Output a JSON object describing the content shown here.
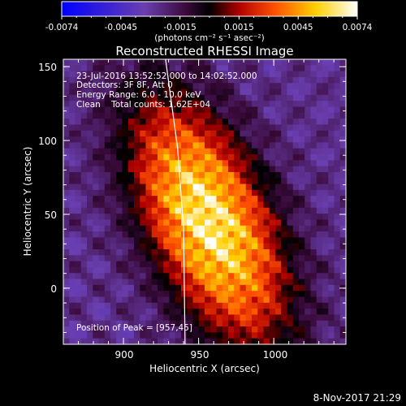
{
  "chart_data": {
    "type": "heatmap",
    "title": "Reconstructed RHESSI Image",
    "xlabel": "Heliocentric X (arcsec)",
    "ylabel": "Heliocentric Y (arcsec)",
    "xlim": [
      860,
      1048
    ],
    "ylim": [
      -38,
      155
    ],
    "x_ticks": [
      900,
      950,
      1000
    ],
    "y_ticks": [
      0,
      50,
      100,
      150
    ],
    "colorbar": {
      "min": -0.0074,
      "max": 0.0074,
      "ticks": [
        "-0.0074",
        "-0.0045",
        "-0.0015",
        "0.0015",
        "0.0045",
        "0.0074"
      ],
      "label": "(photons cm⁻² s⁻¹ asec⁻²)",
      "colormap": [
        "#0000ff",
        "#6a3fb0",
        "#3a0a3a",
        "#000000",
        "#b00000",
        "#ff5000",
        "#ffd000",
        "#ffffff"
      ]
    },
    "annotations": {
      "time": "23-Jul-2016 13:52:52.000 to 14:02:52.000",
      "detectors": "Detectors: 3F 8F, Att 0",
      "energy": "Energy Range: 6.0 - 10.0 keV",
      "clean": "Clean    Total counts: 1.62E+04",
      "peak": "Position of Peak = [957,45]"
    },
    "peak": {
      "x": 957,
      "y": 45,
      "value": 0.0074
    },
    "limb_line": [
      [
        928,
        155
      ],
      [
        936,
        95
      ],
      [
        940,
        40
      ],
      [
        941,
        -38
      ]
    ]
  },
  "footer": {
    "date": "8-Nov-2017 21:29"
  }
}
